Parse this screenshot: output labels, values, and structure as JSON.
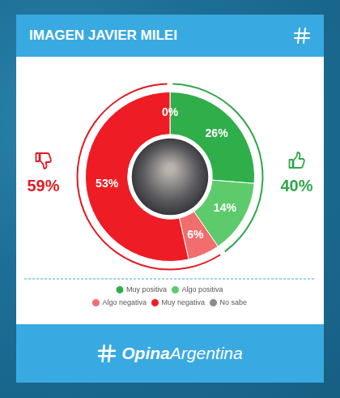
{
  "chart_data": {
    "type": "doughnut",
    "title": "IMAGEN JAVIER MILEI",
    "categories": [
      "Muy positiva",
      "Algo positiva",
      "Algo negativa",
      "Muy negativa",
      "No sabe"
    ],
    "values": [
      26,
      14,
      6,
      53,
      0
    ],
    "value_labels": [
      "26%",
      "14%",
      "6%",
      "53%",
      "0%"
    ],
    "colors": [
      "#2fae4a",
      "#5dcb6c",
      "#f26d6d",
      "#ee1c24",
      "#8a8a8a"
    ],
    "data_labels": true,
    "legend": "bottom",
    "totals": {
      "values": [
        59,
        40
      ],
      "value_labels": [
        "59%",
        "40%"
      ],
      "colors": [
        "#e01b22",
        "#2ea84a"
      ]
    },
    "logo": {
      "bold": "Opina",
      "regular": "Argentina"
    }
  }
}
